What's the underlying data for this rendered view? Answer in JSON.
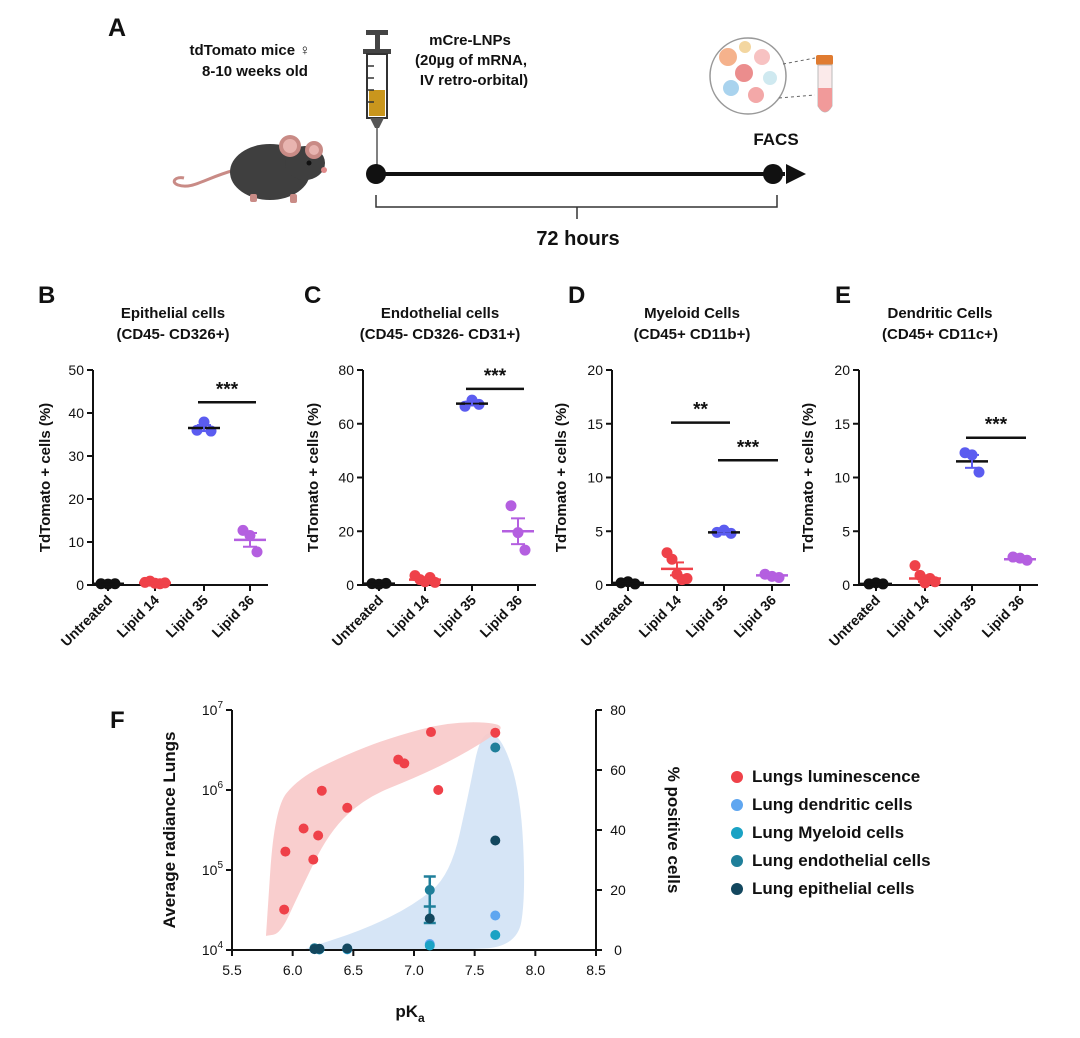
{
  "panel_a": {
    "letter": "A",
    "mouse_line1": "tdTomato mice ♀",
    "mouse_line2": "8-10 weeks old",
    "dose_line1": "mCre-LNPs",
    "dose_line2": "(20µg of mRNA,",
    "dose_line3": "IV retro-orbital)",
    "endpoint": "FACS",
    "duration": "72 hours",
    "duration_color": "#d9443c"
  },
  "colors": {
    "untreated": "#111111",
    "lipid14": "#ef4149",
    "lipid35": "#5b5cf0",
    "lipid36": "#b45fe0",
    "lungs": "#ef4149",
    "dendritic": "#5fa6f0",
    "myeloid": "#1aa2c4",
    "endothelial": "#1f7f9a",
    "epithelial": "#13475e",
    "red_cloud": "#f8c9c9",
    "blue_cloud": "#cfe0f5"
  },
  "chart_data": [
    {
      "type": "scatter",
      "letter": "B",
      "title_line1": "Epithelial cells",
      "title_line2": "(CD45- CD326+)",
      "ylabel": "TdTomato + cells (%)",
      "ylim": [
        0,
        50
      ],
      "yticks": [
        0,
        10,
        20,
        30,
        40,
        50
      ],
      "categories": [
        "Untreated",
        "Lipid 14",
        "Lipid 35",
        "Lipid 36"
      ],
      "groups": [
        {
          "points": [
            0.3,
            0.2,
            0.3
          ],
          "mean": 0.3,
          "sem": 0.1
        },
        {
          "points": [
            0.6,
            0.9,
            0.4,
            0.3,
            0.5
          ],
          "mean": 0.5,
          "sem": 0.1
        },
        {
          "points": [
            36.0,
            37.9,
            35.8
          ],
          "mean": 36.5,
          "sem": 0.7
        },
        {
          "points": [
            12.7,
            11.5,
            7.7
          ],
          "mean": 10.5,
          "sem": 1.6
        }
      ],
      "significance": [
        {
          "label": "***",
          "from": 2,
          "to": 3,
          "y": 42.5
        }
      ]
    },
    {
      "type": "scatter",
      "letter": "C",
      "title_line1": "Endothelial cells",
      "title_line2": "(CD45- CD326- CD31+)",
      "ylabel": "TdTomato + cells (%)",
      "ylim": [
        0,
        80
      ],
      "yticks": [
        0,
        20,
        40,
        60,
        80
      ],
      "categories": [
        "Untreated",
        "Lipid 14",
        "Lipid 35",
        "Lipid 36"
      ],
      "groups": [
        {
          "points": [
            0.5,
            0.3,
            0.6
          ],
          "mean": 0.5,
          "sem": 0.2
        },
        {
          "points": [
            3.5,
            2.0,
            1.2,
            2.8,
            1.0
          ],
          "mean": 2.0,
          "sem": 0.5
        },
        {
          "points": [
            66.5,
            68.8,
            67.2
          ],
          "mean": 67.5,
          "sem": 0.7
        },
        {
          "points": [
            29.5,
            19.5,
            13.0
          ],
          "mean": 20.0,
          "sem": 4.8
        }
      ],
      "significance": [
        {
          "label": "***",
          "from": 2,
          "to": 3,
          "y": 73
        }
      ]
    },
    {
      "type": "scatter",
      "letter": "D",
      "title_line1": "Myeloid Cells",
      "title_line2": "(CD45+ CD11b+)",
      "ylabel": "TdTomato + cells (%)",
      "ylim": [
        0,
        20
      ],
      "yticks": [
        0,
        5,
        10,
        15,
        20
      ],
      "categories": [
        "Untreated",
        "Lipid 14",
        "Lipid 35",
        "Lipid 36"
      ],
      "groups": [
        {
          "points": [
            0.2,
            0.3,
            0.1
          ],
          "mean": 0.2,
          "sem": 0.1
        },
        {
          "points": [
            3.0,
            2.4,
            1.0,
            0.5,
            0.6
          ],
          "mean": 1.5,
          "sem": 0.6
        },
        {
          "points": [
            4.9,
            5.1,
            4.8
          ],
          "mean": 4.9,
          "sem": 0.1
        },
        {
          "points": [
            1.0,
            0.8,
            0.7
          ],
          "mean": 0.9,
          "sem": 0.1
        }
      ],
      "significance": [
        {
          "label": "**",
          "from": 1,
          "to": 2,
          "y": 15.1
        },
        {
          "label": "***",
          "from": 2,
          "to": 3,
          "y": 11.6
        }
      ]
    },
    {
      "type": "scatter",
      "letter": "E",
      "title_line1": "Dendritic Cells",
      "title_line2": "(CD45+ CD11c+)",
      "ylabel": "TdTomato + cells (%)",
      "ylim": [
        0,
        20
      ],
      "yticks": [
        0,
        5,
        10,
        15,
        20
      ],
      "categories": [
        "Untreated",
        "Lipid 14",
        "Lipid 35",
        "Lipid 36"
      ],
      "groups": [
        {
          "points": [
            0.1,
            0.2,
            0.1
          ],
          "mean": 0.1,
          "sem": 0.05
        },
        {
          "points": [
            1.8,
            0.9,
            0.2,
            0.6,
            0.3
          ],
          "mean": 0.6,
          "sem": 0.3
        },
        {
          "points": [
            12.3,
            12.1,
            10.5
          ],
          "mean": 11.5,
          "sem": 0.6
        },
        {
          "points": [
            2.6,
            2.5,
            2.3
          ],
          "mean": 2.4,
          "sem": 0.1
        }
      ],
      "significance": [
        {
          "label": "***",
          "from": 2,
          "to": 3,
          "y": 13.7
        }
      ]
    },
    {
      "type": "scatter",
      "letter": "F",
      "xlabel": "pK",
      "xlabel_sub": "a",
      "ylabel_left": "Average radiance Lungs",
      "ylabel_right": "% positive cells",
      "xlim": [
        5.5,
        8.5
      ],
      "xticks": [
        "5.5",
        "6.0",
        "6.5",
        "7.0",
        "7.5",
        "8.0",
        "8.5"
      ],
      "yleft_log_range": [
        4,
        7
      ],
      "yleft_ticks": [
        {
          "base": "10",
          "exp": "4"
        },
        {
          "base": "10",
          "exp": "5"
        },
        {
          "base": "10",
          "exp": "6"
        },
        {
          "base": "10",
          "exp": "7"
        }
      ],
      "yright_lim": [
        0,
        80
      ],
      "yright_ticks": [
        0,
        20,
        40,
        60,
        80
      ],
      "series": [
        {
          "name": "Lungs luminescence",
          "axis": "left",
          "color_key": "lungs",
          "points": [
            [
              5.93,
              32000.0
            ],
            [
              5.94,
              170000.0
            ],
            [
              6.09,
              330000.0
            ],
            [
              6.17,
              135000.0
            ],
            [
              6.21,
              270000.0
            ],
            [
              6.24,
              980000.0
            ],
            [
              6.45,
              600000.0
            ],
            [
              6.87,
              2400000.0
            ],
            [
              6.92,
              2150000.0
            ],
            [
              7.14,
              5300000.0
            ],
            [
              7.2,
              1000000.0
            ],
            [
              7.67,
              5200000.0
            ]
          ]
        },
        {
          "name": "Lung dendritic cells",
          "axis": "right",
          "color_key": "dendritic",
          "points": [
            [
              6.18,
              0.3
            ],
            [
              6.22,
              0.2
            ],
            [
              6.45,
              0.2
            ],
            [
              7.13,
              2.0
            ],
            [
              7.67,
              11.5
            ]
          ]
        },
        {
          "name": "Lung Myeloid cells",
          "axis": "right",
          "color_key": "myeloid",
          "points": [
            [
              6.18,
              0.4
            ],
            [
              6.22,
              0.2
            ],
            [
              6.45,
              0.3
            ],
            [
              7.13,
              1.5
            ],
            [
              7.67,
              5.0
            ]
          ]
        },
        {
          "name": "Lung endothelial cells",
          "axis": "right",
          "color_key": "endothelial",
          "points": [
            [
              6.18,
              0.6
            ],
            [
              6.22,
              0.3
            ],
            [
              6.45,
              0.5
            ],
            [
              7.13,
              20.0
            ],
            [
              7.67,
              67.5
            ]
          ]
        },
        {
          "name": "Lung epithelial cells",
          "axis": "right",
          "color_key": "epithelial",
          "points": [
            [
              6.18,
              0.3
            ],
            [
              6.22,
              0.4
            ],
            [
              6.45,
              0.5
            ],
            [
              7.13,
              10.5
            ],
            [
              7.67,
              36.5
            ]
          ]
        }
      ],
      "error_bar": {
        "x": 7.13,
        "mean": 14.5,
        "low": 9.0,
        "high": 24.5
      },
      "red_cloud": [
        [
          5.78,
          15000.0
        ],
        [
          5.85,
          600000.0
        ],
        [
          6.05,
          1400000.0
        ],
        [
          6.4,
          2600000.0
        ],
        [
          6.8,
          4500000.0
        ],
        [
          7.3,
          7200000.0
        ],
        [
          7.78,
          6800000.0
        ],
        [
          7.6,
          4200000.0
        ],
        [
          7.3,
          2300000.0
        ],
        [
          7.0,
          1400000.0
        ],
        [
          6.6,
          800000.0
        ],
        [
          6.3,
          300000.0
        ],
        [
          6.05,
          50000.0
        ],
        [
          5.9,
          16000.0
        ]
      ],
      "blue_cloud": [
        [
          6.08,
          0.0
        ],
        [
          6.5,
          0.0
        ],
        [
          7.3,
          0.0
        ],
        [
          7.85,
          1.0
        ],
        [
          7.92,
          18.0
        ],
        [
          7.88,
          52.0
        ],
        [
          7.72,
          71.5
        ],
        [
          7.55,
          73.0
        ],
        [
          7.45,
          52.0
        ],
        [
          7.3,
          25.0
        ],
        [
          7.0,
          15.0
        ],
        [
          6.6,
          7.0
        ],
        [
          6.1,
          0.3
        ]
      ]
    }
  ]
}
